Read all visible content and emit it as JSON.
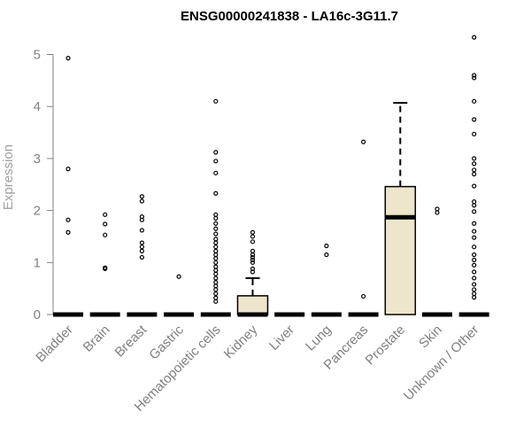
{
  "chart_data": {
    "type": "box",
    "title": "ENSG00000241838 - LA16c-3G11.7",
    "xlabel": "",
    "ylabel": "Expression",
    "ylim": [
      0,
      5.35
    ],
    "yticks": [
      0,
      1,
      2,
      3,
      4,
      5
    ],
    "grid": false,
    "legend": "none",
    "box_fill": "#ede6cc",
    "categories": [
      "Bladder",
      "Brain",
      "Breast",
      "Gastric",
      "Hematopoietic cells",
      "Kidney",
      "Liver",
      "Lung",
      "Pancreas",
      "Prostate",
      "Skin",
      "Unknown / Other"
    ],
    "boxes": [
      {
        "q1": 0,
        "median": 0,
        "q3": 0,
        "whisker_low": 0,
        "whisker_high": 0,
        "outliers": [
          4.93,
          2.8,
          1.82,
          1.58
        ]
      },
      {
        "q1": 0,
        "median": 0,
        "q3": 0,
        "whisker_low": 0,
        "whisker_high": 0,
        "outliers": [
          1.92,
          1.74,
          1.53,
          0.9,
          0.88
        ]
      },
      {
        "q1": 0,
        "median": 0,
        "q3": 0,
        "whisker_low": 0,
        "whisker_high": 0,
        "outliers": [
          2.27,
          2.18,
          1.88,
          1.82,
          1.62,
          1.38,
          1.3,
          1.22,
          1.1
        ]
      },
      {
        "q1": 0,
        "median": 0,
        "q3": 0,
        "whisker_low": 0,
        "whisker_high": 0,
        "outliers": [
          0.73
        ]
      },
      {
        "q1": 0,
        "median": 0,
        "q3": 0,
        "whisker_low": 0,
        "whisker_high": 0,
        "outliers": [
          4.1,
          3.12,
          2.95,
          2.72,
          2.33,
          1.92,
          1.85,
          1.75,
          1.65,
          1.55,
          1.45,
          1.38,
          1.3,
          1.22,
          1.15,
          1.08,
          1.0,
          0.92,
          0.85,
          0.78,
          0.7,
          0.62,
          0.55,
          0.48,
          0.4,
          0.32,
          0.25
        ]
      },
      {
        "q1": 0,
        "median": 0,
        "q3": 0.36,
        "whisker_low": 0,
        "whisker_high": 0.7,
        "outliers": [
          1.58,
          1.5,
          1.4,
          1.22,
          1.15,
          1.1,
          1.05,
          1.0,
          0.88,
          0.82
        ]
      },
      {
        "q1": 0,
        "median": 0,
        "q3": 0,
        "whisker_low": 0,
        "whisker_high": 0,
        "outliers": []
      },
      {
        "q1": 0,
        "median": 0,
        "q3": 0,
        "whisker_low": 0,
        "whisker_high": 0,
        "outliers": [
          1.32,
          1.15
        ]
      },
      {
        "q1": 0,
        "median": 0,
        "q3": 0,
        "whisker_low": 0,
        "whisker_high": 0,
        "outliers": [
          3.32,
          0.35
        ]
      },
      {
        "q1": 0,
        "median": 1.87,
        "q3": 2.46,
        "whisker_low": 0,
        "whisker_high": 4.07,
        "outliers": []
      },
      {
        "q1": 0,
        "median": 0,
        "q3": 0,
        "whisker_low": 0,
        "whisker_high": 0,
        "outliers": [
          2.03,
          1.96
        ]
      },
      {
        "q1": 0,
        "median": 0,
        "q3": 0,
        "whisker_low": 0,
        "whisker_high": 0,
        "outliers": [
          5.33,
          4.6,
          4.55,
          4.1,
          3.75,
          3.47,
          3.0,
          2.9,
          2.78,
          2.7,
          2.47,
          2.17,
          2.1,
          1.98,
          1.75,
          1.6,
          1.48,
          1.3,
          1.15,
          1.05,
          0.95,
          0.82,
          0.7,
          0.58,
          0.48,
          0.4,
          0.33
        ]
      }
    ]
  }
}
